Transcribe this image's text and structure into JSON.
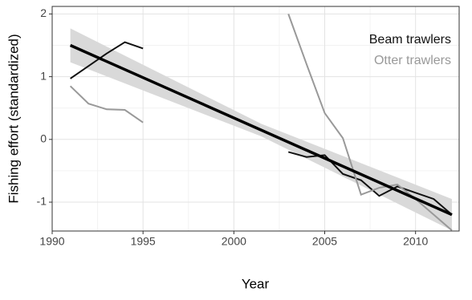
{
  "chart_data": {
    "type": "line",
    "x_label": "Year",
    "y_label": "Fishing effort (standardized)",
    "x": [
      1991,
      1992,
      1993,
      1994,
      1995,
      1996,
      1997,
      1998,
      1999,
      2000,
      2001,
      2002,
      2003,
      2004,
      2005,
      2006,
      2007,
      2008,
      2009,
      2010,
      2011,
      2012
    ],
    "series": [
      {
        "name": "Beam trawlers",
        "color": "#111111",
        "values": [
          0.97,
          1.17,
          1.37,
          1.55,
          1.45,
          null,
          null,
          null,
          null,
          null,
          null,
          null,
          -0.2,
          -0.28,
          -0.25,
          -0.55,
          -0.65,
          -0.9,
          -0.75,
          -0.85,
          -0.95,
          -1.2
        ]
      },
      {
        "name": "Otter trawlers",
        "color": "#999999",
        "values": [
          0.85,
          0.57,
          0.48,
          0.47,
          0.27,
          null,
          null,
          null,
          null,
          null,
          null,
          null,
          2.0,
          1.2,
          0.42,
          0.02,
          -0.88,
          -0.77,
          -0.72,
          -0.95,
          -1.2,
          -1.45
        ]
      }
    ],
    "trend": {
      "x": [
        1991,
        2012
      ],
      "values": [
        1.5,
        -1.2
      ],
      "color": "#000000"
    },
    "band": {
      "x": [
        1991,
        2001.5,
        2012
      ],
      "lower": [
        1.23,
        0.05,
        -1.45
      ],
      "upper": [
        1.77,
        0.25,
        -0.95
      ],
      "color": "#d9d9d9"
    },
    "xlim": [
      1990,
      2012.4
    ],
    "ylim": [
      -1.46,
      2.12
    ],
    "xticks": [
      1990,
      1995,
      2000,
      2005,
      2010
    ],
    "yticks": [
      -1,
      0,
      1,
      2
    ],
    "xminor": [
      1992.5,
      1997.5,
      2002.5,
      2007.5,
      2012.5
    ],
    "yminor": [
      -0.5,
      0.5,
      1.5
    ],
    "grid": true
  }
}
